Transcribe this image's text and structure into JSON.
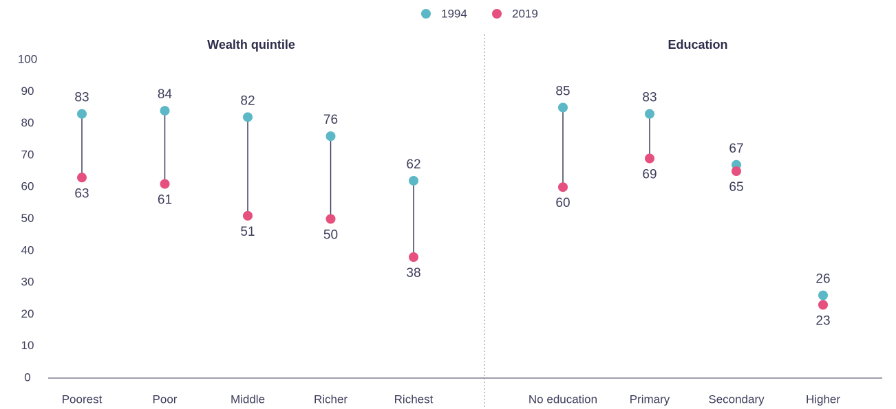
{
  "chart_data": {
    "type": "dumbbell",
    "groups": [
      {
        "title": "Wealth quintile",
        "categories": [
          "Poorest",
          "Poor",
          "Middle",
          "Richer",
          "Richest"
        ]
      },
      {
        "title": "Education",
        "categories": [
          "No education",
          "Primary",
          "Secondary",
          "Higher"
        ]
      }
    ],
    "series": [
      {
        "name": "1994",
        "color": "#5cb8c6",
        "values": [
          83,
          84,
          82,
          76,
          62,
          85,
          83,
          67,
          26
        ]
      },
      {
        "name": "2019",
        "color": "#e6507f",
        "values": [
          63,
          61,
          51,
          50,
          38,
          60,
          69,
          65,
          23
        ]
      }
    ],
    "ylim": [
      0,
      100
    ],
    "yticks": [
      0,
      10,
      20,
      30,
      40,
      50,
      60,
      70,
      80,
      90,
      100
    ]
  }
}
